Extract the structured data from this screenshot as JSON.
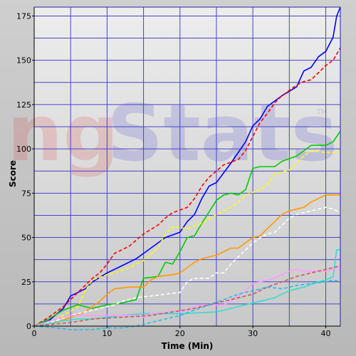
{
  "watermark": {
    "red_part": "ng",
    "blue_part": "Stats",
    "tm": "TM"
  },
  "chart_data": {
    "type": "line",
    "title": "",
    "xlabel": "Time (Min)",
    "ylabel": "Score",
    "xlim": [
      0,
      42
    ],
    "ylim": [
      0,
      180
    ],
    "xticks": [
      0,
      10,
      20,
      30,
      40
    ],
    "yticks": [
      0,
      25,
      50,
      75,
      100,
      125,
      150,
      175
    ],
    "grid": true,
    "legend": "none",
    "series": [
      {
        "color": "#0000ff",
        "dash": "solid",
        "points": [
          [
            0,
            0
          ],
          [
            2,
            3
          ],
          [
            4,
            10
          ],
          [
            5,
            17
          ],
          [
            6,
            19
          ],
          [
            7,
            21
          ],
          [
            8,
            25
          ],
          [
            10,
            30
          ],
          [
            12,
            34
          ],
          [
            14,
            38
          ],
          [
            16,
            44
          ],
          [
            18,
            50
          ],
          [
            20,
            53
          ],
          [
            21,
            59
          ],
          [
            22,
            63
          ],
          [
            23,
            72
          ],
          [
            24,
            79
          ],
          [
            25,
            81
          ],
          [
            27,
            92
          ],
          [
            29,
            104
          ],
          [
            30,
            113
          ],
          [
            31,
            117
          ],
          [
            32,
            124
          ],
          [
            34,
            130
          ],
          [
            36,
            135
          ],
          [
            37,
            144
          ],
          [
            38,
            146
          ],
          [
            39,
            152
          ],
          [
            40,
            155
          ],
          [
            41,
            163
          ],
          [
            41.5,
            175
          ],
          [
            42,
            180
          ]
        ]
      },
      {
        "color": "#ff0000",
        "dash": "dashed",
        "points": [
          [
            0,
            0
          ],
          [
            2,
            5
          ],
          [
            4,
            11
          ],
          [
            6,
            19
          ],
          [
            8,
            27
          ],
          [
            9,
            30
          ],
          [
            10,
            35
          ],
          [
            11,
            41
          ],
          [
            13,
            45
          ],
          [
            15,
            52
          ],
          [
            17,
            57
          ],
          [
            18,
            61
          ],
          [
            19,
            64
          ],
          [
            21,
            67
          ],
          [
            22,
            72
          ],
          [
            23,
            79
          ],
          [
            24,
            84
          ],
          [
            26,
            91
          ],
          [
            28,
            94
          ],
          [
            29,
            99
          ],
          [
            30,
            107
          ],
          [
            31,
            115
          ],
          [
            32,
            120
          ],
          [
            33,
            126
          ],
          [
            34,
            130
          ],
          [
            35,
            133
          ],
          [
            36,
            136
          ],
          [
            37,
            138
          ],
          [
            38,
            139
          ],
          [
            39,
            143
          ],
          [
            40,
            147
          ],
          [
            41,
            150
          ],
          [
            42,
            157
          ]
        ]
      },
      {
        "color": "#00cc00",
        "dash": "solid",
        "points": [
          [
            0,
            0
          ],
          [
            2,
            4
          ],
          [
            4,
            9
          ],
          [
            6,
            12
          ],
          [
            8,
            10
          ],
          [
            10,
            12
          ],
          [
            12,
            13
          ],
          [
            14,
            15
          ],
          [
            15,
            27
          ],
          [
            17,
            28
          ],
          [
            18,
            36
          ],
          [
            19,
            35
          ],
          [
            20,
            42
          ],
          [
            21,
            50
          ],
          [
            22,
            51
          ],
          [
            23,
            58
          ],
          [
            25,
            71
          ],
          [
            26,
            74
          ],
          [
            27,
            75
          ],
          [
            28,
            74
          ],
          [
            29,
            77
          ],
          [
            30,
            89
          ],
          [
            31,
            90
          ],
          [
            33,
            90
          ],
          [
            34,
            93
          ],
          [
            36,
            96
          ],
          [
            37,
            99
          ],
          [
            38,
            102
          ],
          [
            40,
            102
          ],
          [
            41,
            104
          ],
          [
            42,
            110
          ]
        ]
      },
      {
        "color": "#ffff00",
        "dash": "dashed",
        "points": [
          [
            0,
            0
          ],
          [
            2,
            2
          ],
          [
            4,
            6
          ],
          [
            6,
            11
          ],
          [
            7,
            20
          ],
          [
            8,
            26
          ],
          [
            10,
            29
          ],
          [
            11,
            30
          ],
          [
            13,
            33
          ],
          [
            15,
            37
          ],
          [
            17,
            44
          ],
          [
            18,
            52
          ],
          [
            19,
            56
          ],
          [
            21,
            55
          ],
          [
            23,
            58
          ],
          [
            25,
            63
          ],
          [
            27,
            67
          ],
          [
            28,
            70
          ],
          [
            29,
            74
          ],
          [
            31,
            77
          ],
          [
            32,
            80
          ],
          [
            33,
            86
          ],
          [
            35,
            88
          ],
          [
            37,
            96
          ],
          [
            38,
            99
          ],
          [
            40,
            98
          ],
          [
            42,
            98
          ]
        ]
      },
      {
        "color": "#ff9900",
        "dash": "solid",
        "points": [
          [
            0,
            0
          ],
          [
            3,
            2
          ],
          [
            5,
            5
          ],
          [
            7,
            8
          ],
          [
            9,
            14
          ],
          [
            10,
            18
          ],
          [
            11,
            21
          ],
          [
            13,
            22
          ],
          [
            15,
            22
          ],
          [
            16,
            26
          ],
          [
            17,
            28
          ],
          [
            19,
            29
          ],
          [
            20,
            30
          ],
          [
            21,
            33
          ],
          [
            22,
            36
          ],
          [
            23,
            38
          ],
          [
            24,
            39
          ],
          [
            25,
            40
          ],
          [
            26,
            42
          ],
          [
            27,
            44
          ],
          [
            28,
            44
          ],
          [
            29,
            47
          ],
          [
            30,
            50
          ],
          [
            31,
            51
          ],
          [
            32,
            55
          ],
          [
            33,
            59
          ],
          [
            34,
            63
          ],
          [
            35,
            65
          ],
          [
            37,
            67
          ],
          [
            38,
            70
          ],
          [
            39,
            72
          ],
          [
            40,
            74
          ],
          [
            42,
            74
          ]
        ]
      },
      {
        "color": "#ffffff",
        "dash": "dashed",
        "points": [
          [
            0,
            0
          ],
          [
            3,
            3
          ],
          [
            5,
            6
          ],
          [
            7,
            8
          ],
          [
            9,
            10
          ],
          [
            11,
            12
          ],
          [
            12,
            14
          ],
          [
            14,
            16
          ],
          [
            16,
            17
          ],
          [
            18,
            18
          ],
          [
            20,
            19
          ],
          [
            21,
            25
          ],
          [
            22,
            27
          ],
          [
            24,
            27
          ],
          [
            25,
            30
          ],
          [
            26,
            30
          ],
          [
            27,
            35
          ],
          [
            28,
            39
          ],
          [
            29,
            43
          ],
          [
            30,
            47
          ],
          [
            31,
            50
          ],
          [
            32,
            52
          ],
          [
            33,
            53
          ],
          [
            34,
            57
          ],
          [
            35,
            61
          ],
          [
            36,
            63
          ],
          [
            37,
            64
          ],
          [
            38,
            65
          ],
          [
            39,
            66
          ],
          [
            40,
            67
          ],
          [
            41,
            66
          ],
          [
            42,
            64
          ]
        ]
      },
      {
        "color": "#33ddcc",
        "dash": "solid",
        "points": [
          [
            0,
            0
          ],
          [
            4,
            3
          ],
          [
            6,
            4
          ],
          [
            8,
            4
          ],
          [
            10,
            5
          ],
          [
            12,
            6
          ],
          [
            15,
            7
          ],
          [
            20,
            7
          ],
          [
            25,
            8
          ],
          [
            27,
            10
          ],
          [
            29,
            12
          ],
          [
            31,
            14
          ],
          [
            33,
            16
          ],
          [
            35,
            20
          ],
          [
            37,
            22
          ],
          [
            39,
            25
          ],
          [
            40,
            26
          ],
          [
            41,
            28
          ],
          [
            41.5,
            43
          ],
          [
            42,
            43
          ]
        ]
      },
      {
        "color": "#ff99ff",
        "dash": "solid",
        "points": [
          [
            0,
            0
          ],
          [
            3,
            4
          ],
          [
            5,
            6
          ],
          [
            8,
            6
          ],
          [
            10,
            6
          ],
          [
            11,
            6
          ],
          [
            14,
            6
          ],
          [
            15,
            5
          ],
          [
            16,
            7
          ],
          [
            18,
            8
          ],
          [
            20,
            8
          ],
          [
            21,
            9
          ],
          [
            22,
            11
          ],
          [
            23,
            12
          ],
          [
            26,
            12
          ],
          [
            27,
            14
          ],
          [
            28,
            17
          ],
          [
            29,
            20
          ],
          [
            30,
            24
          ],
          [
            31,
            25
          ],
          [
            32,
            26
          ],
          [
            33,
            27
          ],
          [
            34,
            29
          ],
          [
            35,
            31
          ],
          [
            36,
            32
          ],
          [
            37,
            31
          ],
          [
            38,
            31
          ],
          [
            40,
            31
          ],
          [
            41,
            32
          ],
          [
            42,
            33
          ]
        ]
      },
      {
        "color": "#cc5555",
        "dash": "dashed",
        "points": [
          [
            0,
            0
          ],
          [
            5,
            2
          ],
          [
            8,
            4
          ],
          [
            12,
            5
          ],
          [
            16,
            6
          ],
          [
            19,
            8
          ],
          [
            22,
            10
          ],
          [
            24,
            12
          ],
          [
            26,
            14
          ],
          [
            28,
            16
          ],
          [
            30,
            18
          ],
          [
            32,
            22
          ],
          [
            34,
            25
          ],
          [
            36,
            28
          ],
          [
            38,
            30
          ],
          [
            40,
            32
          ],
          [
            42,
            34
          ]
        ]
      },
      {
        "color": "#22bbee",
        "dash": "dashed",
        "points": [
          [
            0,
            0
          ],
          [
            3,
            -1
          ],
          [
            5,
            -2
          ],
          [
            8,
            -2
          ],
          [
            10,
            -1
          ],
          [
            12,
            -1
          ],
          [
            14,
            0
          ],
          [
            16,
            2
          ],
          [
            18,
            4
          ],
          [
            20,
            6
          ],
          [
            22,
            9
          ],
          [
            24,
            12
          ],
          [
            26,
            15
          ],
          [
            28,
            18
          ],
          [
            30,
            20
          ],
          [
            32,
            22
          ],
          [
            34,
            21
          ],
          [
            36,
            23
          ],
          [
            38,
            24
          ],
          [
            40,
            25
          ],
          [
            41,
            26
          ],
          [
            42,
            25
          ]
        ]
      }
    ]
  }
}
